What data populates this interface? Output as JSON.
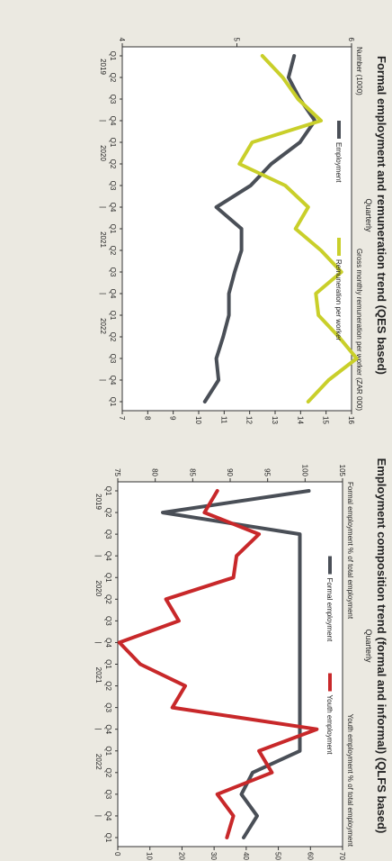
{
  "chart_data": [
    {
      "type": "line",
      "title": "Formal employment and remuneration trend (QES based)",
      "subtitle": "Quarterly",
      "ylabel_left": "Number (1000)",
      "ylabel_right": "Gross monthly remuneration per worker (ZAR 000)",
      "ylim_left": [
        4,
        6
      ],
      "ylim_right": [
        7,
        16
      ],
      "yticks_left": [
        "4",
        "5",
        "6"
      ],
      "yticks_right": [
        "7",
        "8",
        "9",
        "10",
        "11",
        "12",
        "13",
        "14",
        "15",
        "16"
      ],
      "categories": [
        "Q1",
        "Q2",
        "Q3",
        "Q4",
        "Q1",
        "Q2",
        "Q3",
        "Q4",
        "Q1",
        "Q2",
        "Q3",
        "Q4",
        "Q1",
        "Q2",
        "Q3",
        "Q4",
        "Q1"
      ],
      "year_labels": [
        "2019",
        "|",
        "2020",
        "|",
        "2021",
        "|",
        "2022",
        "|"
      ],
      "series": [
        {
          "name": "Employment",
          "axis": "left",
          "color": "#4a4f57",
          "values": [
            5.5,
            5.45,
            5.55,
            5.68,
            5.55,
            5.3,
            5.12,
            4.82,
            5.04,
            5.04,
            4.98,
            4.93,
            4.93,
            4.88,
            4.82,
            4.84,
            4.72
          ]
        },
        {
          "name": "Remuneration per worker",
          "axis": "right",
          "color": "#c9cf2a",
          "values": [
            12.5,
            13.3,
            13.9,
            14.8,
            12.1,
            11.6,
            13.4,
            14.3,
            13.8,
            14.8,
            15.6,
            14.6,
            14.7,
            15.5,
            16.2,
            15.1,
            14.3
          ]
        }
      ]
    },
    {
      "type": "line",
      "title": "Employment composition trend (formal and informal) (QLFS based)",
      "subtitle": "Quarterly",
      "ylabel_left": "Formal employment % of total employment",
      "ylabel_right": "Youth employment % of total employment",
      "ylim_left": [
        75,
        105
      ],
      "ylim_right": [
        0,
        70
      ],
      "yticks_left": [
        "75",
        "80",
        "85",
        "90",
        "95",
        "100",
        "105"
      ],
      "yticks_right": [
        "0",
        "10",
        "20",
        "30",
        "40",
        "50",
        "60",
        "70"
      ],
      "categories": [
        "Q1",
        "Q2",
        "Q3",
        "Q4",
        "Q1",
        "Q2",
        "Q3",
        "Q4",
        "Q1",
        "Q2",
        "Q3",
        "Q4",
        "Q1",
        "Q2",
        "Q3",
        "Q4",
        "Q1"
      ],
      "year_labels": [
        "2019",
        "|",
        "2020",
        "|",
        "2021",
        "|",
        "2022",
        "|"
      ],
      "series": [
        {
          "name": "Formal employment",
          "axis": "left",
          "color": "#4a4f57",
          "values": [
            100.5,
            81.0,
            99.3,
            99.3,
            99.3,
            99.3,
            99.3,
            99.3,
            99.3,
            99.3,
            99.3,
            99.3,
            99.3,
            93.0,
            91.5,
            93.6,
            91.8
          ]
        },
        {
          "name": "Youth employment",
          "axis": "right",
          "color": "#c8282a",
          "values": [
            31.0,
            27.0,
            44.0,
            37.0,
            36.0,
            15.0,
            19.0,
            0.5,
            7.0,
            21.0,
            17.0,
            62.0,
            44.0,
            48.0,
            31.0,
            36.0,
            34.0
          ]
        }
      ]
    }
  ]
}
